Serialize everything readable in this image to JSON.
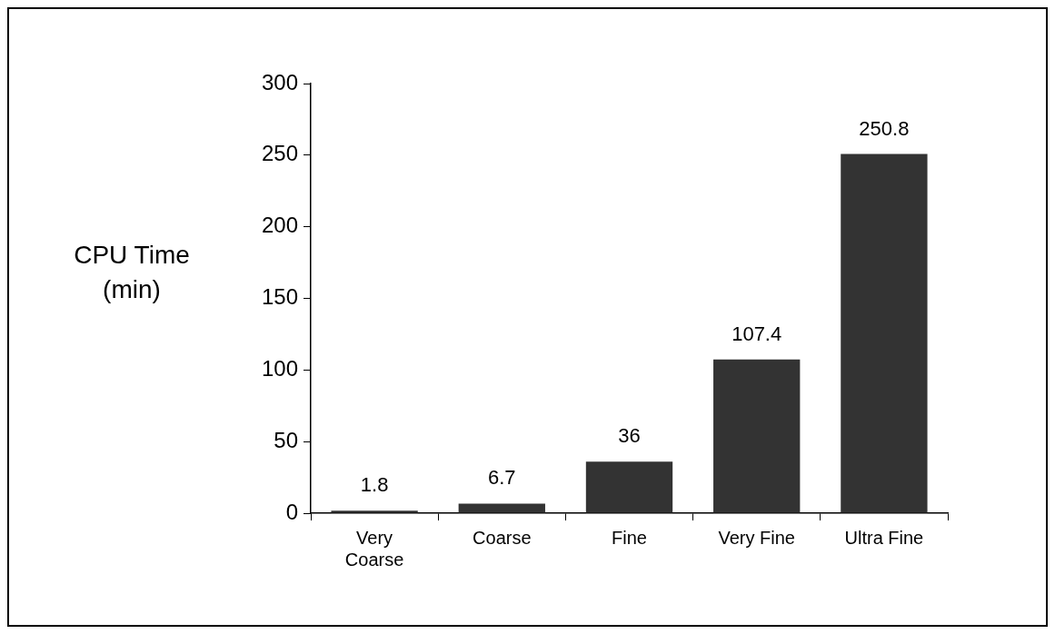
{
  "chart_data": {
    "type": "bar",
    "ylabel": "CPU Time (min)",
    "categories": [
      "Very Coarse",
      "Coarse",
      "Fine",
      "Very Fine",
      "Ultra Fine"
    ],
    "values": [
      1.8,
      6.7,
      36,
      107.4,
      250.8
    ],
    "color": "#333333",
    "ylim": [
      0,
      300
    ],
    "yticks": [
      0,
      50,
      100,
      150,
      200,
      250,
      300
    ],
    "data_labels": true,
    "grid": false,
    "legend": false
  }
}
